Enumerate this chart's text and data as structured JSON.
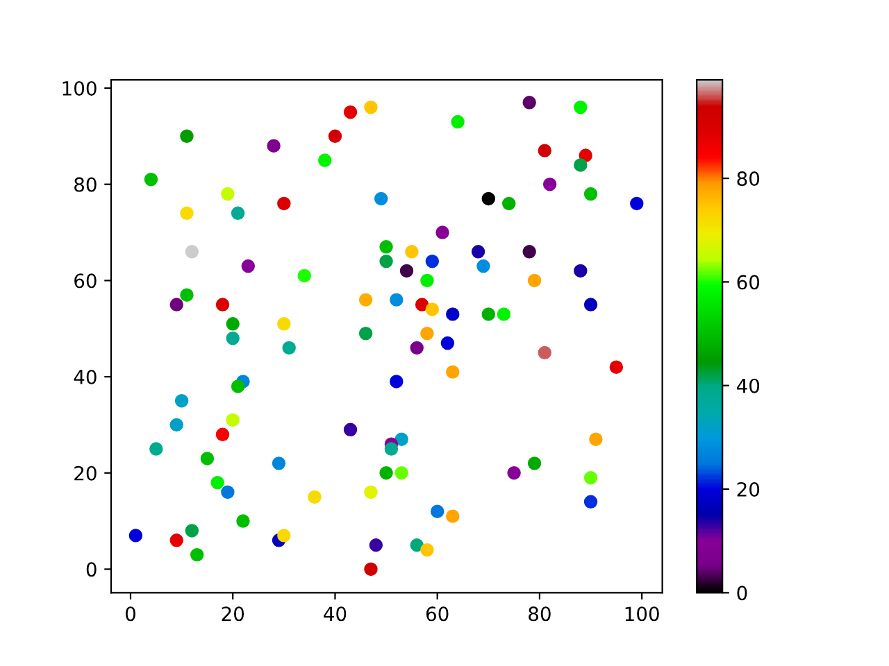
{
  "chart_data": {
    "type": "scatter",
    "x": [
      1,
      9,
      12,
      13,
      5,
      9,
      10,
      15,
      17,
      19,
      18,
      20,
      22,
      29,
      30,
      29,
      36,
      43,
      47,
      48,
      47,
      22,
      21,
      31,
      20,
      20,
      18,
      9,
      11,
      12,
      23,
      34,
      30,
      46,
      46,
      11,
      19,
      21,
      30,
      4,
      11,
      28,
      38,
      40,
      43,
      47,
      49,
      50,
      50,
      55,
      54,
      59,
      58,
      52,
      57,
      59,
      56,
      58,
      62,
      63,
      61,
      64,
      68,
      69,
      70,
      74,
      78,
      88,
      81,
      89,
      88,
      82,
      90,
      99,
      78,
      88,
      79,
      90,
      70,
      73,
      63,
      81,
      95,
      52,
      91,
      79,
      75,
      90,
      90,
      53,
      51,
      51,
      50,
      53,
      60,
      63,
      56,
      58
    ],
    "values": [
      7,
      6,
      8,
      3,
      25,
      30,
      35,
      23,
      18,
      16,
      28,
      31,
      10,
      6,
      7,
      22,
      15,
      29,
      16,
      5,
      0,
      39,
      38,
      46,
      48,
      51,
      55,
      55,
      57,
      66,
      63,
      61,
      51,
      56,
      49,
      74,
      78,
      74,
      76,
      81,
      90,
      88,
      85,
      90,
      95,
      96,
      77,
      67,
      64,
      66,
      62,
      64,
      60,
      56,
      55,
      54,
      46,
      49,
      47,
      53,
      70,
      93,
      66,
      63,
      77,
      76,
      97,
      96,
      87,
      86,
      84,
      80,
      78,
      76,
      66,
      62,
      60,
      55,
      53,
      53,
      41,
      45,
      42,
      39,
      27,
      22,
      20,
      19,
      14,
      27,
      26,
      25,
      20,
      20,
      12,
      11,
      5,
      4
    ],
    "cvalues": [
      20,
      88,
      42,
      50,
      38,
      32,
      32,
      50,
      57,
      25,
      85,
      65,
      50,
      17,
      72,
      27,
      72,
      13,
      68,
      13,
      93,
      27,
      50,
      38,
      38,
      47,
      90,
      5,
      50,
      99,
      10,
      60,
      72,
      77,
      42,
      72,
      65,
      38,
      90,
      50,
      45,
      7,
      58,
      92,
      88,
      75,
      28,
      50,
      42,
      75,
      3,
      22,
      57,
      28,
      90,
      75,
      6,
      78,
      20,
      18,
      10,
      57,
      14,
      28,
      0,
      48,
      4,
      58,
      92,
      88,
      42,
      10,
      50,
      20,
      3,
      14,
      78,
      17,
      48,
      58,
      78,
      96,
      88,
      20,
      78,
      47,
      10,
      62,
      22,
      32,
      10,
      38,
      48,
      62,
      25,
      78,
      40,
      75
    ],
    "xlim": [
      -3.8,
      104
    ],
    "ylim": [
      -4.9,
      101.7
    ],
    "xticks": [
      0,
      20,
      40,
      60,
      80,
      100
    ],
    "yticks": [
      0,
      20,
      40,
      60,
      80,
      100
    ],
    "clim": [
      0,
      99
    ],
    "cticks": [
      0,
      20,
      40,
      60,
      80
    ],
    "marker": "circle",
    "grid": false
  }
}
